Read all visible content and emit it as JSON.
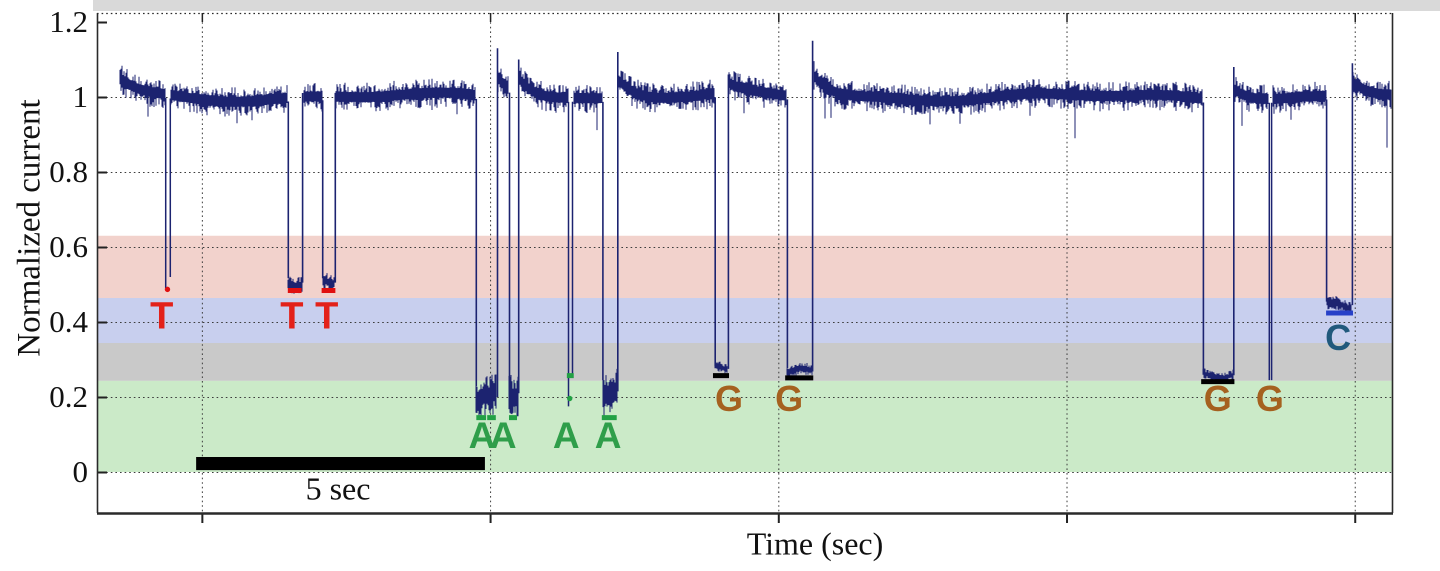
{
  "chart_data": {
    "type": "line",
    "title": "",
    "xlabel": "Time (sec)",
    "ylabel": "Normalized current",
    "x_unit": "sec",
    "y_range": [
      -0.12,
      1.224
    ],
    "x_range_sec": [
      0,
      22.6
    ],
    "baseline_level": 1.0,
    "baseline_noise": 0.025,
    "trace_start_sec": 0.4,
    "trace_end_sec": 22.6,
    "trace_color": "#1c2370",
    "grid_on": true,
    "y_ticks": [
      {
        "v": 0,
        "label": "0"
      },
      {
        "v": 0.2,
        "label": "0.2"
      },
      {
        "v": 0.4,
        "label": "0.4"
      },
      {
        "v": 0.6,
        "label": "0.6"
      },
      {
        "v": 0.8,
        "label": "0.8"
      },
      {
        "v": 1,
        "label": "1"
      },
      {
        "v": 1.2,
        "label": "1.2"
      }
    ],
    "y_gridlines": [
      0,
      0.2,
      0.4,
      0.6,
      0.8,
      1.0
    ],
    "x_gridlines_sec": [
      1.83,
      6.86,
      11.89,
      16.92,
      21.95
    ],
    "bands": [
      {
        "base": "T",
        "color": "#f2d2cc",
        "v0": 0.464,
        "v1": 0.63
      },
      {
        "base": "C",
        "color": "#c8cfee",
        "v0": 0.344,
        "v1": 0.464
      },
      {
        "base": "G",
        "color": "#c9c9c9",
        "v0": 0.243,
        "v1": 0.344
      },
      {
        "base": "A",
        "color": "#cbeac8",
        "v0": 0.0,
        "v1": 0.243
      }
    ],
    "base_colors": {
      "T": "#e32119",
      "A": "#2f9e4a",
      "G": "#a5611f",
      "C": "#20597c"
    },
    "marker_colors": {
      "T": "#e01010",
      "A": "#22a044",
      "G": "#000000",
      "C": "#2741c8"
    },
    "scale_bar": {
      "label": "5 sec",
      "t0": 1.73,
      "t1": 6.77,
      "v_top": 0.04,
      "v_bottom": 0.005
    },
    "baseline_dips": [
      {
        "t": 2.44,
        "v": 0.93
      },
      {
        "t": 16.28,
        "v": 0.95
      },
      {
        "t": 17.07,
        "v": 0.89
      },
      {
        "t": 22.51,
        "v": 0.865
      }
    ],
    "events": [
      {
        "base": "T",
        "t0": 1.19,
        "t1": 1.27,
        "level": 0.49,
        "level2": 0.52,
        "narrow": true,
        "markers": [
          {
            "type": "dot",
            "v": 0.487,
            "t": 1.23
          }
        ],
        "label": {
          "text": "T",
          "t": 1.13,
          "v": 0.411
        }
      },
      {
        "base": "T",
        "t0": 3.33,
        "t1": 3.58,
        "level": 0.505,
        "amp": 0.023,
        "markers": [
          {
            "type": "bar",
            "v": 0.484,
            "t0": 3.33,
            "t1": 3.57
          }
        ],
        "label": {
          "text": "T",
          "t": 3.4,
          "v": 0.411
        }
      },
      {
        "base": "T",
        "t0": 3.93,
        "t1": 4.15,
        "level": 0.505,
        "amp": 0.023,
        "markers": [
          {
            "type": "bar",
            "v": 0.484,
            "t0": 3.92,
            "t1": 4.16
          }
        ],
        "label": {
          "text": "T",
          "t": 4.01,
          "v": 0.411
        }
      },
      {
        "base": "A",
        "t0": 6.61,
        "t1": 6.98,
        "level": 0.2,
        "amp": 0.058,
        "overshoot": 1.13,
        "markers": [
          {
            "type": "bar",
            "v": 0.145,
            "t0": 6.62,
            "t1": 6.79
          },
          {
            "type": "bar",
            "v": 0.145,
            "t0": 6.81,
            "t1": 6.96
          }
        ],
        "label": {
          "text": "A",
          "t": 6.72,
          "v": 0.093
        }
      },
      {
        "base": "A",
        "t0": 7.19,
        "t1": 7.35,
        "level": 0.21,
        "amp": 0.055,
        "overshoot": 1.1,
        "markers": [
          {
            "type": "bar",
            "v": 0.145,
            "t0": 7.19,
            "t1": 7.33
          }
        ],
        "label": {
          "text": "A",
          "t": 7.09,
          "v": 0.093
        }
      },
      {
        "base": "A",
        "t0": 8.22,
        "t1": 8.29,
        "level": 0.175,
        "level2": 0.26,
        "narrow": true,
        "markers": [
          {
            "type": "bar",
            "v": 0.257,
            "t0": 8.2,
            "t1": 8.32
          },
          {
            "type": "dot",
            "v": 0.196,
            "t": 8.25
          }
        ],
        "label": {
          "text": "A",
          "t": 8.19,
          "v": 0.093
        }
      },
      {
        "base": "A",
        "t0": 8.82,
        "t1": 9.08,
        "level": 0.215,
        "amp": 0.06,
        "overshoot": 1.12,
        "markers": [
          {
            "type": "bar",
            "v": 0.145,
            "t0": 8.81,
            "t1": 9.07
          }
        ],
        "label": {
          "text": "A",
          "t": 8.92,
          "v": 0.093
        }
      },
      {
        "base": "G",
        "t0": 10.78,
        "t1": 11.01,
        "level": 0.275,
        "amp": 0.014,
        "overshoot": 1.06,
        "markers": [
          {
            "type": "bar",
            "v": 0.257,
            "t0": 10.75,
            "t1": 11.03
          }
        ],
        "label": {
          "text": "G",
          "t": 11.03,
          "v": 0.192
        }
      },
      {
        "base": "G",
        "t0": 12.04,
        "t1": 12.48,
        "level": 0.268,
        "amp": 0.017,
        "overshoot": 1.15,
        "markers": [
          {
            "type": "bar",
            "v": 0.251,
            "t0": 12.01,
            "t1": 12.5
          }
        ],
        "label": {
          "text": "G",
          "t": 12.08,
          "v": 0.192
        }
      },
      {
        "base": "G",
        "t0": 19.3,
        "t1": 19.83,
        "level": 0.258,
        "amp": 0.014,
        "overshoot": 1.08,
        "markers": [
          {
            "type": "bar",
            "v": 0.241,
            "t0": 19.27,
            "t1": 19.85
          }
        ],
        "label": {
          "text": "G",
          "t": 19.56,
          "v": 0.192
        }
      },
      {
        "base": "G",
        "t0": 20.45,
        "t1": 20.49,
        "level": 0.245,
        "narrow": true,
        "markers": [],
        "label": {
          "text": "G",
          "t": 20.47,
          "v": 0.192
        }
      },
      {
        "base": "C",
        "t0": 21.45,
        "t1": 21.9,
        "level": 0.445,
        "amp": 0.019,
        "overshoot": 1.09,
        "markers": [
          {
            "type": "bar",
            "v": 0.424,
            "t0": 21.45,
            "t1": 21.92
          }
        ],
        "label": {
          "text": "C",
          "t": 21.66,
          "v": 0.355
        }
      }
    ]
  }
}
